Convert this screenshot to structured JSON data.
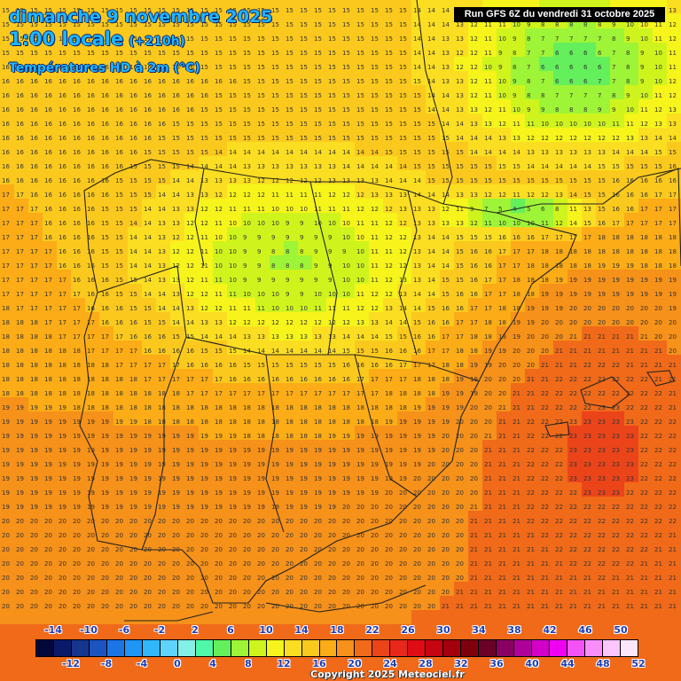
{
  "header": {
    "date_title": "dimanche 9 novembre 2025",
    "time_title": "1:00 locale",
    "time_offset": "(+210h)",
    "parameter_title": "Températures HD à 2m (°C)"
  },
  "run_info": "Run GFS 6Z du vendredi 31 octobre 2025",
  "legend": {
    "top_labels": [
      "-14",
      "-10",
      "-6",
      "-2",
      "2",
      "6",
      "10",
      "14",
      "18",
      "22",
      "26",
      "30",
      "34",
      "38",
      "42",
      "46",
      "50"
    ],
    "bottom_labels": [
      "-12",
      "-8",
      "-4",
      "0",
      "4",
      "8",
      "12",
      "16",
      "20",
      "24",
      "28",
      "32",
      "36",
      "40",
      "44",
      "48",
      "52"
    ],
    "colors": [
      "#04073a",
      "#0a1a6a",
      "#16358c",
      "#1b53bf",
      "#1d74e4",
      "#1f96f4",
      "#31b8fb",
      "#5fd4fb",
      "#83f1e6",
      "#4ff7a8",
      "#64ef5d",
      "#9ef436",
      "#cff41d",
      "#f6f41b",
      "#fbde21",
      "#fbc91d",
      "#fbac16",
      "#f6911a",
      "#f06a19",
      "#ec4419",
      "#e8281a",
      "#df0c16",
      "#c50510",
      "#a3000b",
      "#7f000d",
      "#6b0027",
      "#8a0062",
      "#b0009a",
      "#d300c8",
      "#f000f0",
      "#f552f6",
      "#f88ff8",
      "#fbc6fb",
      "#fbe6fb"
    ],
    "color_min": -14,
    "color_step": 2
  },
  "map": {
    "region": "Péninsule Ibérique et Baléares",
    "values_note_removed": true
  },
  "copyright": "Copyright 2025 Meteociel.fr"
}
